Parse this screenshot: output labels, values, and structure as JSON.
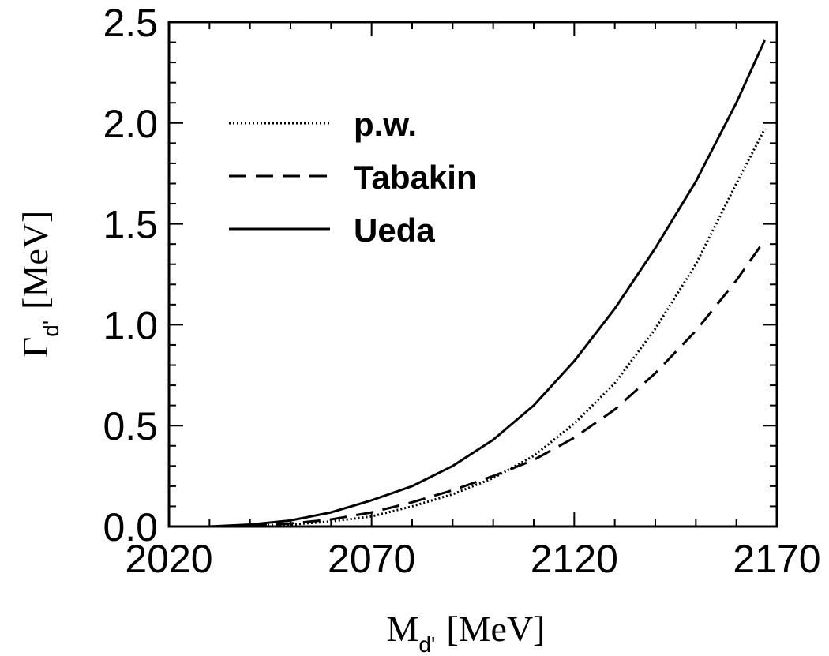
{
  "chart_data": {
    "type": "line",
    "xlabel": {
      "main": "M",
      "sub": "d'",
      "unit": "[MeV]"
    },
    "ylabel": {
      "main": "Γ",
      "sub": "d'",
      "unit": "[MeV]"
    },
    "xlim": [
      2020,
      2170
    ],
    "ylim": [
      0,
      2.5
    ],
    "xticks": [
      2020,
      2070,
      2120,
      2170
    ],
    "xtick_labels": [
      "2020",
      "2070",
      "2120",
      "2170"
    ],
    "yticks": [
      0,
      0.5,
      1.0,
      1.5,
      2.0,
      2.5
    ],
    "ytick_labels": [
      "0.0",
      "0.5",
      "1.0",
      "1.5",
      "2.0",
      "2.5"
    ],
    "grid": false,
    "legend_position": "top-left",
    "series": [
      {
        "name": "p.w.",
        "dash": "dotted",
        "x": [
          2020,
          2030,
          2040,
          2050,
          2060,
          2070,
          2080,
          2090,
          2100,
          2110,
          2120,
          2130,
          2140,
          2150,
          2160,
          2167
        ],
        "y": [
          0.0,
          0.0,
          0.005,
          0.01,
          0.025,
          0.05,
          0.1,
          0.16,
          0.24,
          0.35,
          0.51,
          0.71,
          0.98,
          1.3,
          1.7,
          1.97
        ]
      },
      {
        "name": "Tabakin",
        "dash": "dashed",
        "x": [
          2020,
          2030,
          2040,
          2050,
          2060,
          2070,
          2080,
          2090,
          2100,
          2110,
          2120,
          2130,
          2140,
          2150,
          2160,
          2167
        ],
        "y": [
          0.0,
          0.0,
          0.005,
          0.015,
          0.035,
          0.07,
          0.12,
          0.18,
          0.25,
          0.33,
          0.44,
          0.58,
          0.76,
          0.97,
          1.22,
          1.42
        ]
      },
      {
        "name": "Ueda",
        "dash": "solid",
        "x": [
          2020,
          2030,
          2040,
          2050,
          2060,
          2070,
          2080,
          2090,
          2100,
          2110,
          2120,
          2130,
          2140,
          2150,
          2160,
          2167
        ],
        "y": [
          0.0,
          0.0,
          0.01,
          0.03,
          0.07,
          0.13,
          0.2,
          0.3,
          0.43,
          0.6,
          0.82,
          1.08,
          1.38,
          1.71,
          2.1,
          2.41
        ]
      }
    ]
  }
}
